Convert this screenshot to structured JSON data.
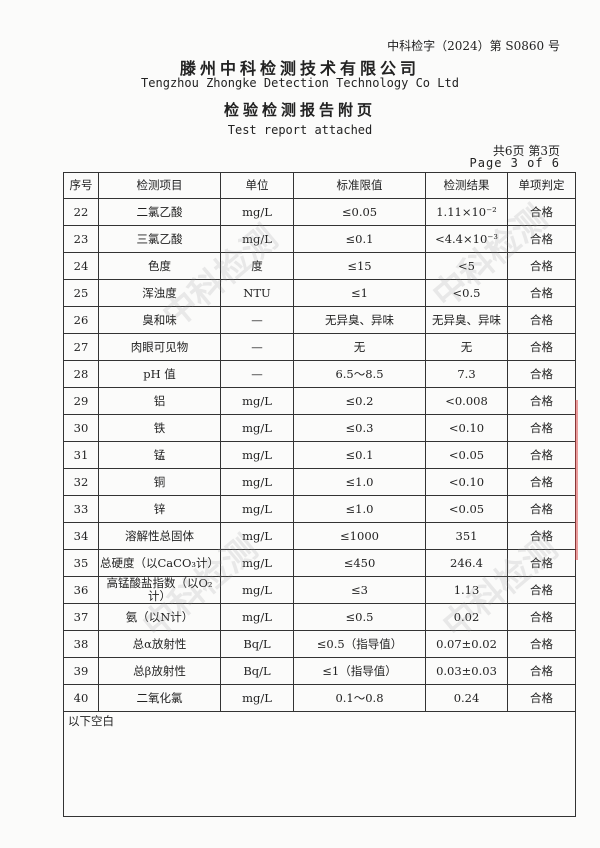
{
  "header": {
    "doc_number": "中科检字（2024）第 S0860 号",
    "company_cn": "滕州中科检测技术有限公司",
    "company_en": "Tengzhou Zhongke Detection Technology Co Ltd",
    "title_cn": "检验检测报告附页",
    "title_en": "Test report attached",
    "page_cn": "共6页 第3页",
    "page_en": "Page 3 of 6"
  },
  "watermark": "中科检测",
  "table": {
    "columns": [
      "序号",
      "检测项目",
      "单位",
      "标准限值",
      "检测结果",
      "单项判定"
    ],
    "rows": [
      [
        "22",
        "二氯乙酸",
        "mg/L",
        "≤0.05",
        "1.11×10⁻²",
        "合格"
      ],
      [
        "23",
        "三氯乙酸",
        "mg/L",
        "≤0.1",
        "<4.4×10⁻³",
        "合格"
      ],
      [
        "24",
        "色度",
        "度",
        "≤15",
        "<5",
        "合格"
      ],
      [
        "25",
        "浑浊度",
        "NTU",
        "≤1",
        "<0.5",
        "合格"
      ],
      [
        "26",
        "臭和味",
        "—",
        "无异臭、异味",
        "无异臭、异味",
        "合格"
      ],
      [
        "27",
        "肉眼可见物",
        "—",
        "无",
        "无",
        "合格"
      ],
      [
        "28",
        "pH 值",
        "—",
        "6.5～8.5",
        "7.3",
        "合格"
      ],
      [
        "29",
        "铝",
        "mg/L",
        "≤0.2",
        "<0.008",
        "合格"
      ],
      [
        "30",
        "铁",
        "mg/L",
        "≤0.3",
        "<0.10",
        "合格"
      ],
      [
        "31",
        "锰",
        "mg/L",
        "≤0.1",
        "<0.05",
        "合格"
      ],
      [
        "32",
        "铜",
        "mg/L",
        "≤1.0",
        "<0.10",
        "合格"
      ],
      [
        "33",
        "锌",
        "mg/L",
        "≤1.0",
        "<0.05",
        "合格"
      ],
      [
        "34",
        "溶解性总固体",
        "mg/L",
        "≤1000",
        "351",
        "合格"
      ],
      [
        "35",
        "总硬度（以CaCO₃计）",
        "mg/L",
        "≤450",
        "246.4",
        "合格"
      ],
      [
        "36",
        "高锰酸盐指数（以O₂计）",
        "mg/L",
        "≤3",
        "1.13",
        "合格"
      ],
      [
        "37",
        "氨（以N计）",
        "mg/L",
        "≤0.5",
        "0.02",
        "合格"
      ],
      [
        "38",
        "总α放射性",
        "Bq/L",
        "≤0.5（指导值）",
        "0.07±0.02",
        "合格"
      ],
      [
        "39",
        "总β放射性",
        "Bq/L",
        "≤1（指导值）",
        "0.03±0.03",
        "合格"
      ],
      [
        "40",
        "二氧化氯",
        "mg/L",
        "0.1～0.8",
        "0.24",
        "合格"
      ]
    ],
    "footer_note": "以下空白"
  }
}
